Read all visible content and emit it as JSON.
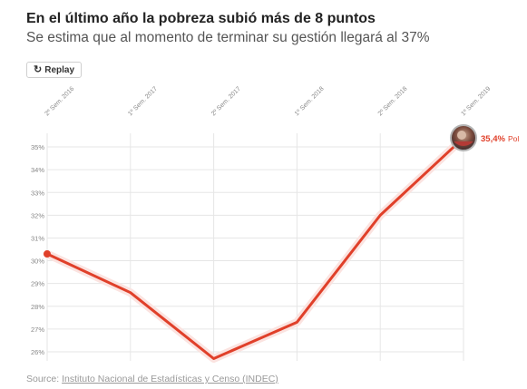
{
  "header": {
    "title": "En el último año la pobreza subió más de 8 puntos",
    "subtitle": "Se estima que al momento de terminar su gestión llegará al 37%"
  },
  "controls": {
    "replay_label": "Replay",
    "replay_icon": "replay-icon"
  },
  "colors": {
    "line": "#e0402a",
    "glow": "#fbe3e0",
    "grid": "#e6e6e6",
    "tick_text": "#888888"
  },
  "chart_data": {
    "type": "line",
    "title": "",
    "xlabel": "",
    "ylabel": "",
    "categories": [
      "2º Sem. 2016",
      "1º Sem. 2017",
      "2º Sem. 2017",
      "1º Sem. 2018",
      "2º Sem. 2018",
      "1º Sem. 2019"
    ],
    "y_ticks": [
      "26%",
      "27%",
      "28%",
      "29%",
      "30%",
      "31%",
      "32%",
      "33%",
      "34%",
      "35%"
    ],
    "ylim": [
      25.6,
      35.6
    ],
    "grid": true,
    "series": [
      {
        "values": [
          30.3,
          28.6,
          25.7,
          27.3,
          32.0,
          35.4
        ]
      }
    ],
    "end_label": {
      "value_text": "35,4%",
      "suffix_text": "Pol"
    }
  },
  "footer": {
    "source_prefix": "Source: ",
    "source_link": "Instituto Nacional de Estadísticas y Censo (INDEC)"
  }
}
